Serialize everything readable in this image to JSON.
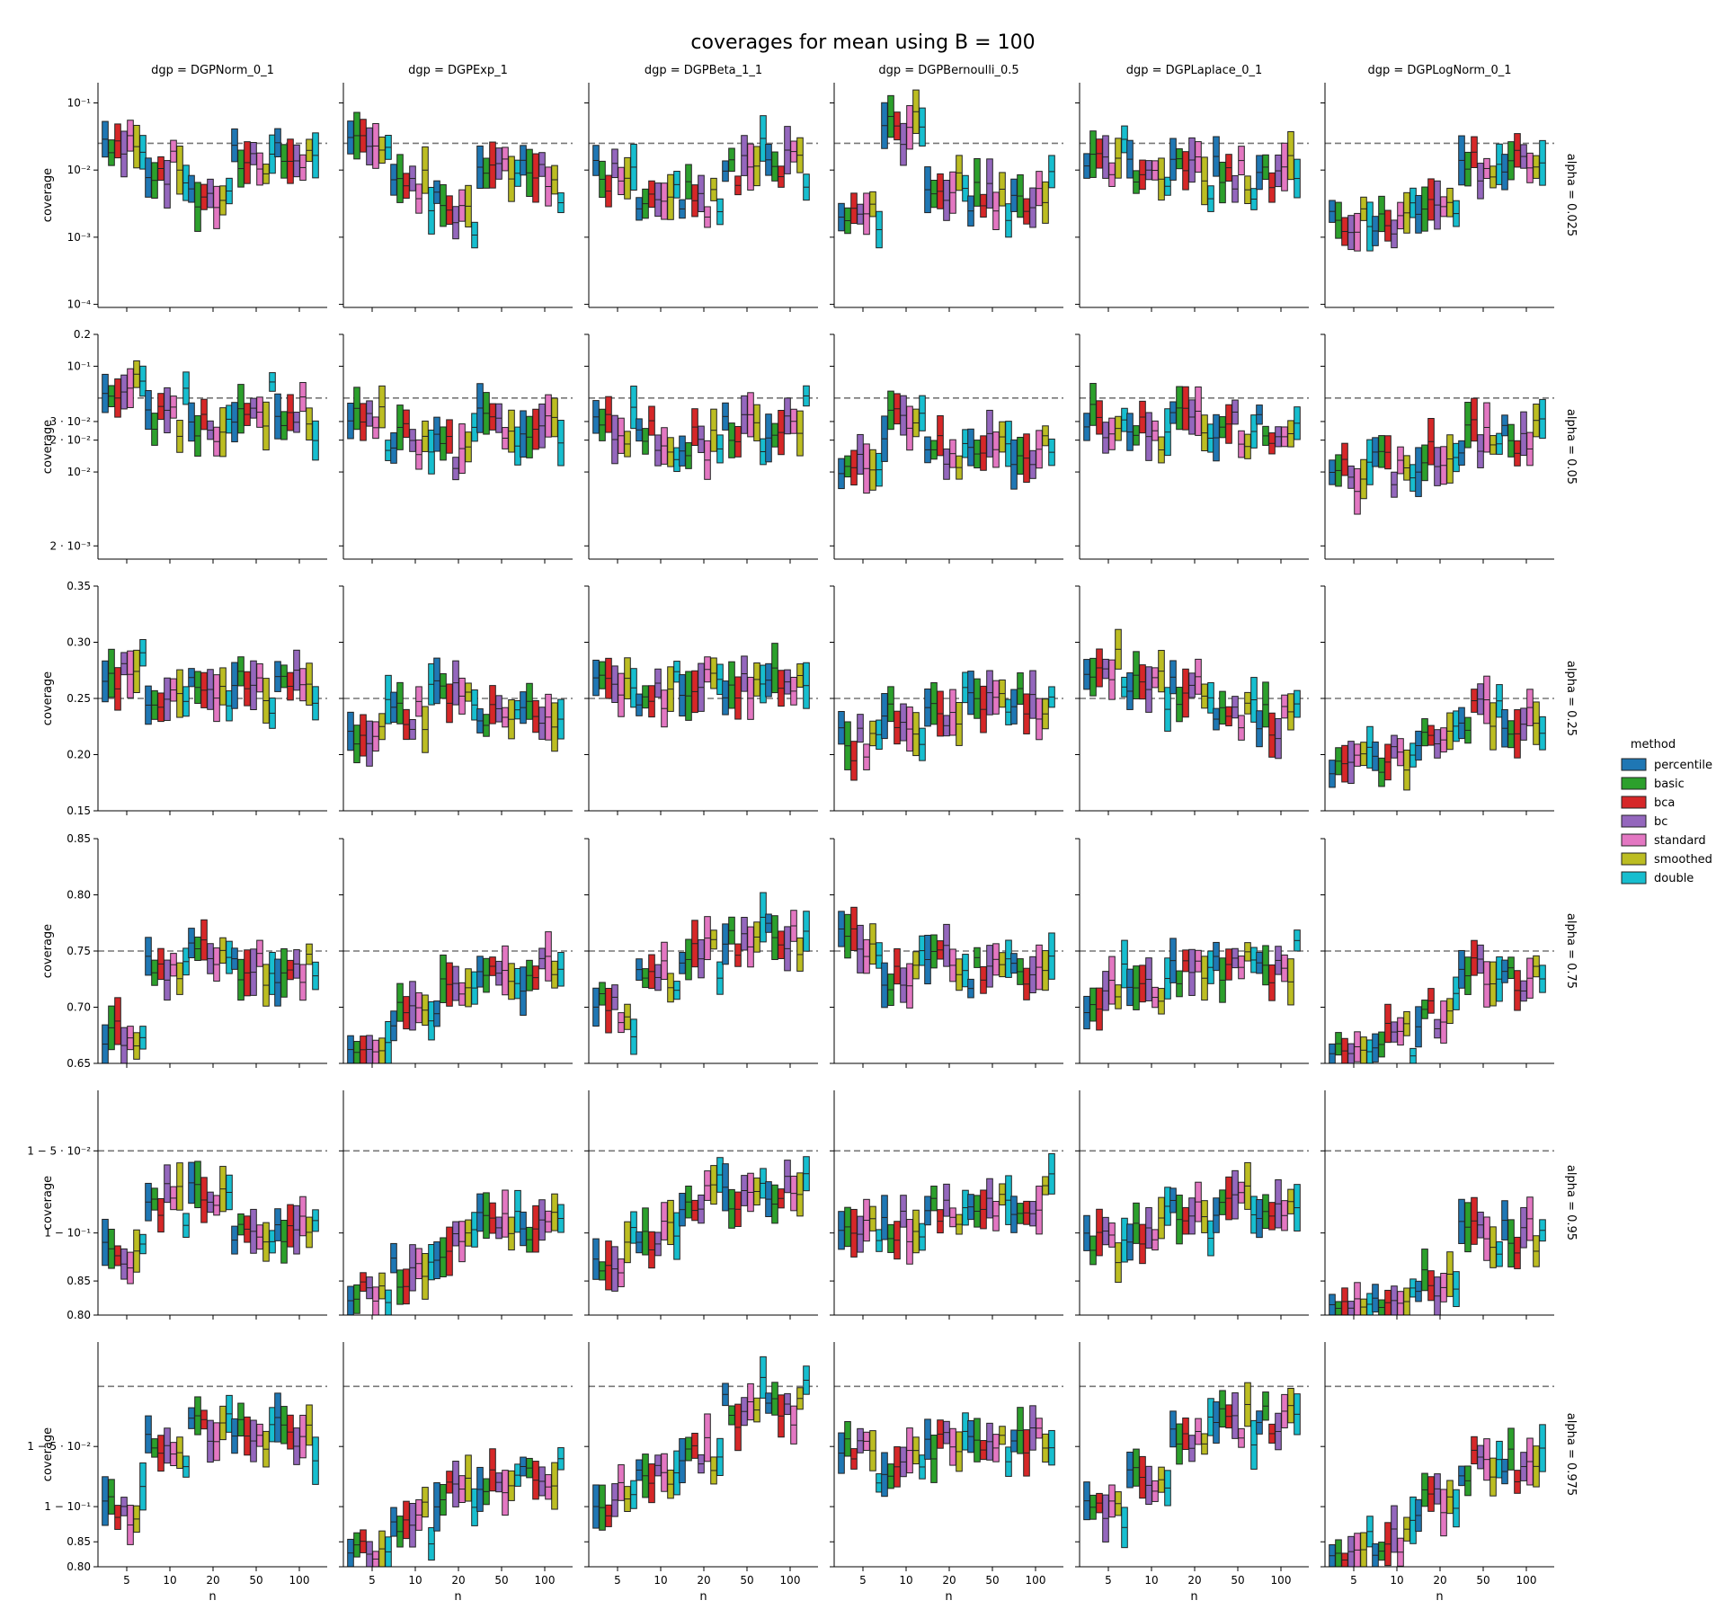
{
  "title": "coverages for mean using B = 100",
  "methods": [
    {
      "name": "percentile",
      "color": "#1f77b4"
    },
    {
      "name": "basic",
      "color": "#2ca02c"
    },
    {
      "name": "bca",
      "color": "#d62728"
    },
    {
      "name": "bc",
      "color": "#9467bd"
    },
    {
      "name": "standard",
      "color": "#e377c2"
    },
    {
      "name": "smoothed",
      "color": "#bcbd22"
    },
    {
      "name": "double",
      "color": "#17becf"
    }
  ],
  "legend": {
    "title": "method",
    "placement": "right"
  },
  "chart_data": {
    "type": "bar",
    "description_kind": "faceted floating-bar (interval) plot",
    "columns": [
      "dgp = DGPNorm_0_1",
      "dgp = DGPExp_1",
      "dgp = DGPBeta_1_1",
      "dgp = DGPBernoulli_0.5",
      "dgp = DGPLaplace_0_1",
      "dgp = DGPLogNorm_0_1"
    ],
    "x_ticks": [
      "5",
      "10",
      "20",
      "50",
      "100"
    ],
    "xlabel": "n",
    "ylabel": "coverage",
    "rows": [
      {
        "label": "alpha = 0.025",
        "scale": "log",
        "ylim": [
          9e-05,
          0.2
        ],
        "ref": 0.025,
        "ticks": [
          {
            "v": 0.1,
            "label": "10⁻¹"
          },
          {
            "v": 0.01,
            "label": "10⁻²"
          },
          {
            "v": 0.001,
            "label": "10⁻³"
          },
          {
            "v": 0.0001,
            "label": "10⁻⁴"
          }
        ]
      },
      {
        "label": "alpha = 0.05",
        "scale": "log",
        "ylim": [
          0.0015,
          0.2
        ],
        "ref": 0.05,
        "ticks": [
          {
            "v": 0.2,
            "label": "0.2"
          },
          {
            "v": 0.1,
            "label": "10⁻¹"
          },
          {
            "v": 0.03,
            "label": "3 · 10⁻²"
          },
          {
            "v": 0.02,
            "label": "2 · 10⁻²"
          },
          {
            "v": 0.01,
            "label": "10⁻²"
          },
          {
            "v": 0.002,
            "label": "2 · 10⁻³"
          }
        ]
      },
      {
        "label": "alpha = 0.25",
        "scale": "linear",
        "ylim": [
          0.15,
          0.35
        ],
        "ref": 0.25,
        "ticks": [
          {
            "v": 0.35,
            "label": "0.35"
          },
          {
            "v": 0.3,
            "label": "0.30"
          },
          {
            "v": 0.25,
            "label": "0.25"
          },
          {
            "v": 0.2,
            "label": "0.20"
          },
          {
            "v": 0.15,
            "label": "0.15"
          }
        ]
      },
      {
        "label": "alpha = 0.75",
        "scale": "linear",
        "ylim": [
          0.65,
          0.85
        ],
        "ref": 0.75,
        "ticks": [
          {
            "v": 0.85,
            "label": "0.85"
          },
          {
            "v": 0.8,
            "label": "0.80"
          },
          {
            "v": 0.75,
            "label": "0.75"
          },
          {
            "v": 0.7,
            "label": "0.70"
          },
          {
            "v": 0.65,
            "label": "0.65"
          }
        ]
      },
      {
        "label": "alpha = 0.95",
        "scale": "logit-complement",
        "ylim": [
          0.8,
          0.97
        ],
        "ref": 0.95,
        "ticks": [
          {
            "v": 0.95,
            "label": "1 − 5 · 10⁻²"
          },
          {
            "v": 0.9,
            "label": "1 − 10⁻¹"
          },
          {
            "v": 0.85,
            "label": "0.85"
          },
          {
            "v": 0.8,
            "label": "0.80"
          }
        ]
      },
      {
        "label": "alpha = 0.975",
        "scale": "logit-complement",
        "ylim": [
          0.8,
          0.985
        ],
        "ref": 0.975,
        "ticks": [
          {
            "v": 0.95,
            "label": "1 − 5 · 10⁻²"
          },
          {
            "v": 0.9,
            "label": "1 − 10⁻¹"
          },
          {
            "v": 0.85,
            "label": "0.85"
          },
          {
            "v": 0.8,
            "label": "0.80"
          }
        ]
      }
    ],
    "center_fraction": [
      [
        [
          0.75,
          0.62,
          0.5,
          0.66
        ],
        [
          0.72,
          0.54,
          0.44,
          0.6
        ],
        [
          0.58,
          0.5,
          0.48,
          0.62
        ],
        [
          0.45,
          0.8,
          0.52,
          0.48
        ],
        [
          0.64,
          0.58,
          0.61,
          0.6
        ],
        [
          0.4,
          0.35,
          0.48,
          0.62
        ]
      ],
      [
        [
          0.76,
          0.62,
          0.58,
          0.66
        ],
        [
          0.6,
          0.54,
          0.48,
          0.6
        ],
        [
          0.58,
          0.55,
          0.52,
          0.6
        ],
        [
          0.45,
          0.6,
          0.48,
          0.5
        ],
        [
          0.62,
          0.56,
          0.6,
          0.58
        ],
        [
          0.38,
          0.4,
          0.45,
          0.55
        ]
      ],
      [
        [
          0.62,
          0.5,
          0.56,
          0.56
        ],
        [
          0.36,
          0.42,
          0.5,
          0.44
        ],
        [
          0.56,
          0.52,
          0.55,
          0.58
        ],
        [
          0.3,
          0.4,
          0.45,
          0.48
        ],
        [
          0.66,
          0.6,
          0.54,
          0.4
        ],
        [
          0.18,
          0.24,
          0.35,
          0.42
        ]
      ],
      [
        [
          0.14,
          0.42,
          0.5,
          0.42
        ],
        [
          0.06,
          0.2,
          0.3,
          0.4
        ],
        [
          0.24,
          0.38,
          0.48,
          0.56
        ],
        [
          0.55,
          0.4,
          0.45,
          0.4
        ],
        [
          0.3,
          0.32,
          0.4,
          0.42
        ],
        [
          0.02,
          0.14,
          0.22,
          0.4
        ]
      ],
      [
        [
          0.25,
          0.52,
          0.55,
          0.4
        ],
        [
          0.08,
          0.2,
          0.32,
          0.4
        ],
        [
          0.26,
          0.36,
          0.5,
          0.55
        ],
        [
          0.35,
          0.4,
          0.45,
          0.5
        ],
        [
          0.3,
          0.38,
          0.45,
          0.5
        ],
        [
          0.02,
          0.06,
          0.16,
          0.35
        ]
      ],
      [
        [
          0.24,
          0.52,
          0.62,
          0.6
        ],
        [
          0.08,
          0.22,
          0.34,
          0.4
        ],
        [
          0.3,
          0.38,
          0.5,
          0.7
        ],
        [
          0.5,
          0.45,
          0.55,
          0.55
        ],
        [
          0.25,
          0.4,
          0.55,
          0.65
        ],
        [
          0.02,
          0.1,
          0.28,
          0.45
        ]
      ]
    ]
  }
}
